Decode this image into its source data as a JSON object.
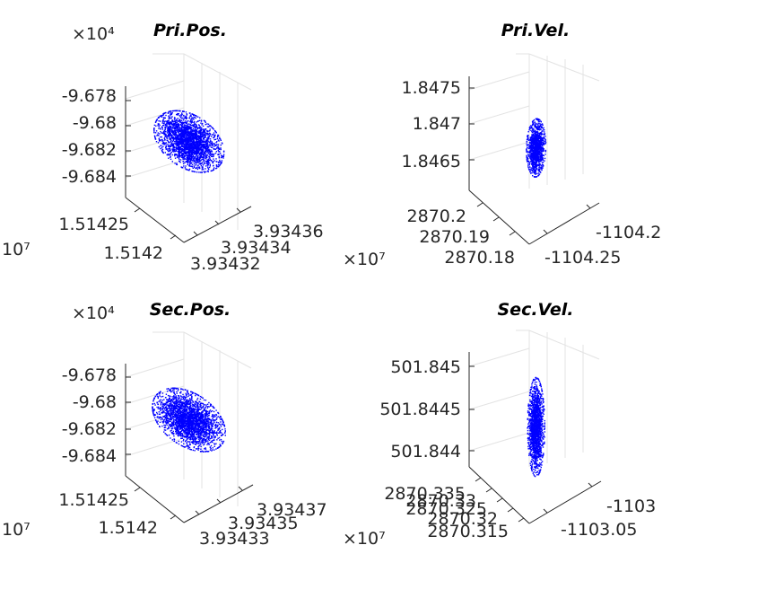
{
  "chart_data": [
    {
      "type": "scatter",
      "title": "Pri.Pos.",
      "z_ticks": [
        "-9.678",
        "-9.68",
        "-9.682",
        "-9.684"
      ],
      "y_ticks": [
        "1.51425",
        "1.5142"
      ],
      "x_ticks": [
        "3.93436",
        "3.93434",
        "3.93432"
      ],
      "z_exponent": "×10⁴",
      "y_exponent": "10⁷",
      "color": "#0000ff"
    },
    {
      "type": "scatter",
      "title": "Pri.Vel.",
      "z_ticks": [
        "1.8475",
        "1.847",
        "1.8465"
      ],
      "y_ticks": [
        "2870.2",
        "2870.19",
        "2870.18"
      ],
      "x_ticks": [
        "-1104.2",
        "-1104.25"
      ],
      "y_exponent": "×10⁷",
      "color": "#0000ff"
    },
    {
      "type": "scatter",
      "title": "Sec.Pos.",
      "z_ticks": [
        "-9.678",
        "-9.68",
        "-9.682",
        "-9.684"
      ],
      "y_ticks": [
        "1.51425",
        "1.5142"
      ],
      "x_ticks": [
        "3.93437",
        "3.93435",
        "3.93433"
      ],
      "z_exponent": "×10⁴",
      "y_exponent": "10⁷",
      "color": "#0000ff"
    },
    {
      "type": "scatter",
      "title": "Sec.Vel.",
      "z_ticks": [
        "501.845",
        "501.8445",
        "501.844"
      ],
      "y_ticks": [
        "2870.335",
        "2870.33",
        "2870.325",
        "2870.32",
        "2870.315"
      ],
      "x_ticks": [
        "-1103",
        "-1103.05"
      ],
      "y_exponent": "×10⁷",
      "color": "#0000ff"
    }
  ]
}
